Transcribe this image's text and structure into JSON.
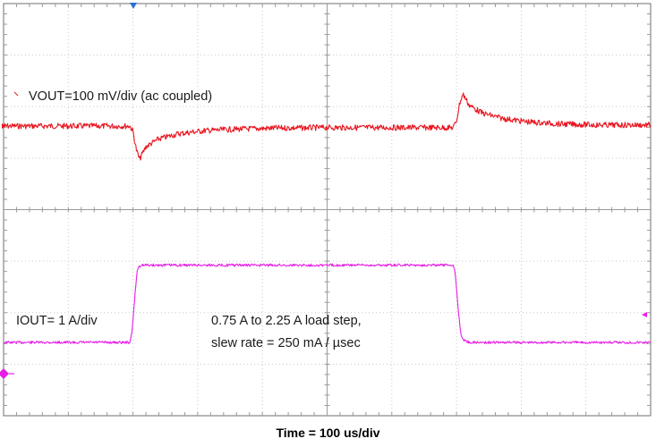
{
  "chart_data": {
    "type": "line",
    "xlabel": "Time = 100 us/div",
    "x_unit": "us",
    "xlim": [
      0,
      1000
    ],
    "grid": true,
    "annotations": [
      "VOUT=100 mV/div (ac coupled)",
      "IOUT= 1 A/div",
      "0.75 A to 2.25 A load step,",
      "slew rate = 250 mA / µsec"
    ],
    "series": [
      {
        "name": "VOUT",
        "color": "#e8141e",
        "unit": "mV (ac coupled)",
        "x": [
          0,
          195,
          200,
          205,
          210,
          220,
          240,
          270,
          310,
          360,
          420,
          500,
          600,
          695,
          700,
          705,
          710,
          720,
          740,
          770,
          810,
          860,
          920,
          1000
        ],
        "y": [
          0,
          0,
          -10,
          -45,
          -65,
          -40,
          -25,
          -15,
          -9,
          -6,
          -4,
          -3,
          -3,
          -3,
          10,
          45,
          62,
          40,
          25,
          15,
          8,
          4,
          2,
          2
        ]
      },
      {
        "name": "IOUT",
        "color": "#e61ee6",
        "unit": "A",
        "x": [
          0,
          195,
          198,
          202,
          206,
          208,
          212,
          220,
          300,
          400,
          500,
          600,
          695,
          698,
          702,
          706,
          710,
          720,
          730,
          800,
          900,
          1000
        ],
        "y": [
          0.75,
          0.75,
          0.9,
          1.5,
          2.1,
          2.2,
          2.25,
          2.25,
          2.25,
          2.25,
          2.25,
          2.25,
          2.25,
          2.1,
          1.5,
          0.95,
          0.8,
          0.75,
          0.75,
          0.75,
          0.75,
          0.75
        ]
      }
    ]
  }
}
